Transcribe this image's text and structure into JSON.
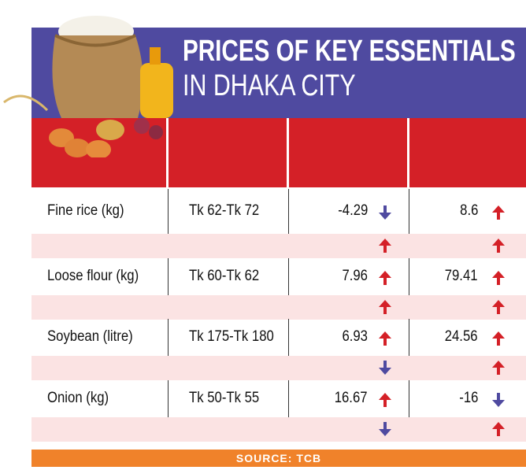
{
  "header": {
    "title_line1": "PRICES OF KEY ESSENTIALS",
    "title_line2": "IN DHAKA CITY"
  },
  "table": {
    "rows": [
      [
        "Fine rice (kg)",
        "Tk 62-Tk 72",
        -4.29,
        8.6
      ],
      [
        "Loose flour (kg)",
        "Tk 60-Tk 62",
        7.96,
        79.41
      ],
      [
        "Soybean (litre)",
        "Tk 175-Tk 180",
        6.93,
        24.56
      ],
      [
        "Onion (kg)",
        "Tk 50-Tk 55",
        16.67,
        -16
      ]
    ]
  },
  "source": "SOURCE: TCB"
}
